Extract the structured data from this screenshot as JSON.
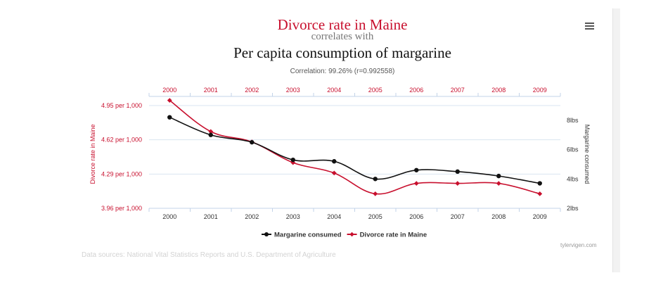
{
  "header": {
    "title_a": "Divorce rate in Maine",
    "connector": "correlates with",
    "title_b": "Per capita consumption of margarine",
    "correlation": "Correlation: 99.26% (r=0.992558)"
  },
  "footer": {
    "sources": "Data sources: National Vital Statistics Reports and U.S. Department of Agriculture",
    "credit": "tylervigen.com"
  },
  "colors": {
    "series_a": "#c8102e",
    "series_b": "#111111",
    "muted": "#d3d3d3",
    "grid": "#d9e4f0",
    "axis": "#c3d3e8"
  },
  "chart_data": {
    "type": "line",
    "categories": [
      "2000",
      "2001",
      "2002",
      "2003",
      "2004",
      "2005",
      "2006",
      "2007",
      "2008",
      "2009"
    ],
    "y_left": {
      "label": "Divorce rate in Maine",
      "range": [
        3.96,
        4.95
      ],
      "ticks": [
        3.96,
        4.29,
        4.62,
        4.95
      ],
      "tick_labels": [
        "3.96 per 1,000",
        "4.29 per 1,000",
        "4.62 per 1,000",
        "4.95 per 1,000"
      ]
    },
    "y_right": {
      "label": "Margarine consumed",
      "range": [
        2,
        9
      ],
      "ticks": [
        2,
        4,
        6,
        8
      ],
      "tick_labels": [
        "2lbs",
        "4lbs",
        "6lbs",
        "8lbs"
      ]
    },
    "series": [
      {
        "name": "Margarine consumed",
        "axis": "right",
        "color": "#111111",
        "marker": "circle",
        "values": [
          8.2,
          7.0,
          6.5,
          5.3,
          5.2,
          4.0,
          4.6,
          4.5,
          4.2,
          3.7
        ]
      },
      {
        "name": "Divorce rate in Maine",
        "axis": "left",
        "color": "#c8102e",
        "marker": "diamond",
        "values": [
          5.0,
          4.7,
          4.6,
          4.4,
          4.3,
          4.1,
          4.2,
          4.2,
          4.2,
          4.1
        ]
      }
    ],
    "legend_order": [
      "Margarine consumed",
      "Divorce rate in Maine"
    ],
    "legend_position": "bottom-center"
  }
}
